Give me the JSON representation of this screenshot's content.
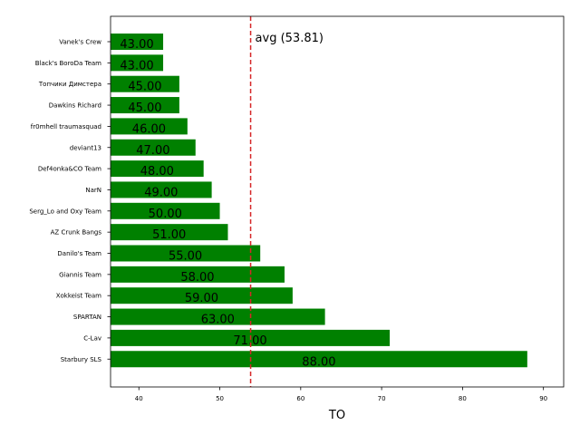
{
  "chart_data": {
    "type": "bar",
    "orientation": "horizontal",
    "categories": [
      "Vanek's Crew",
      "Black's BoroDa Team",
      "Топчики Димстера",
      "Dawkins Richard",
      "fr0mhell traumasquad",
      "deviant13",
      "Def4onka&CO Team",
      "NarN",
      "Serg_Lo and Oxy Team",
      "AZ Crunk Bangs",
      "Danilo's Team",
      "Giannis Team",
      "Xokkeist Team",
      "SPARTAN",
      "C-Lav",
      "Starbury SLS"
    ],
    "values": [
      43,
      43,
      45,
      45,
      46,
      47,
      48,
      49,
      50,
      51,
      55,
      58,
      59,
      63,
      71,
      88
    ],
    "data_labels": [
      "43.00",
      "43.00",
      "45.00",
      "45.00",
      "46.00",
      "47.00",
      "48.00",
      "49.00",
      "50.00",
      "51.00",
      "55.00",
      "58.00",
      "59.00",
      "63.00",
      "71.00",
      "88.00"
    ],
    "xlabel": "TO",
    "ylabel": "",
    "xlim": [
      36.5,
      92.5
    ],
    "xticks": [
      40,
      50,
      60,
      70,
      80,
      90
    ],
    "bar_color": "#008000",
    "average": {
      "value": 53.81,
      "label": "avg (53.81)",
      "color": "#d62728",
      "style": "dashed"
    },
    "grid": false
  }
}
